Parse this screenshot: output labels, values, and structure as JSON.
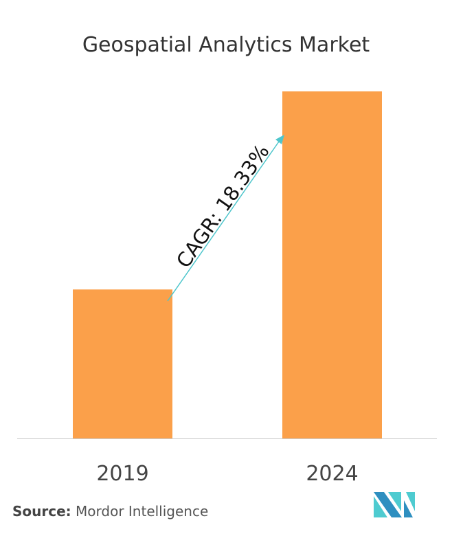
{
  "chart_data": {
    "type": "bar",
    "title": "Geospatial Analytics Market",
    "categories": [
      "2019",
      "2024"
    ],
    "values": [
      1,
      2.33
    ],
    "bar_color": "#FBA04A",
    "annotation": {
      "text": "CAGR: 18.33%",
      "arrow_color": "#4FC6CC"
    },
    "xlabel": "",
    "ylabel": "",
    "grid": false,
    "y_axis_shown": false
  },
  "source": {
    "label": "Source:",
    "text": "Mordor Intelligence"
  },
  "logo": {
    "colors": [
      "#2E8FC0",
      "#4ECBD0"
    ]
  }
}
